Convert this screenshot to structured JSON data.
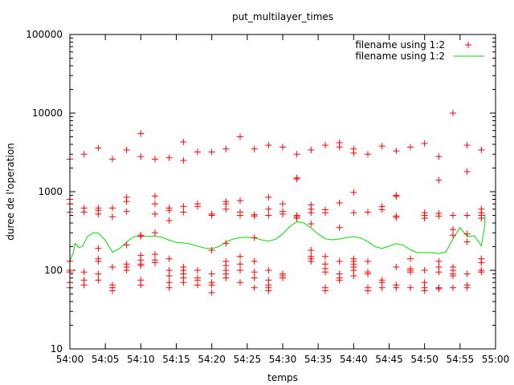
{
  "chart_data": {
    "type": "scatter",
    "title": "put_multilayer_times",
    "xlabel": "temps",
    "ylabel": "duree de l'operation",
    "y_scale": "log",
    "ylim": [
      10,
      100000
    ],
    "xlim": [
      "54:00",
      "55:00"
    ],
    "yticks": [
      {
        "value": 10,
        "label": "10"
      },
      {
        "value": 100,
        "label": "100"
      },
      {
        "value": 1000,
        "label": "1000"
      },
      {
        "value": 10000,
        "label": "10000"
      },
      {
        "value": 100000,
        "label": "100000"
      }
    ],
    "xticks": [
      "54:00",
      "54:05",
      "54:10",
      "54:15",
      "54:20",
      "54:25",
      "54:30",
      "54:35",
      "54:40",
      "54:45",
      "54:50",
      "54:55",
      "55:00"
    ],
    "grid": false,
    "legend_position": "top-right",
    "series": [
      {
        "name": "filename using 1:2",
        "style": "points",
        "marker": "+",
        "color": "#ff0000",
        "groups": [
          {
            "t": "54:00",
            "values": [
              60,
              70,
              95,
              100,
              130,
              550,
              700,
              800,
              2600
            ]
          },
          {
            "t": "54:02",
            "values": [
              65,
              75,
              95,
              550,
              620,
              3000
            ]
          },
          {
            "t": "54:04",
            "values": [
              75,
              90,
              130,
              140,
              190,
              520,
              580,
              620,
              3600
            ]
          },
          {
            "t": "54:06",
            "values": [
              55,
              60,
              65,
              110,
              480,
              620,
              2600
            ]
          },
          {
            "t": "54:08",
            "values": [
              100,
              110,
              120,
              210,
              560,
              750,
              850,
              3400
            ]
          },
          {
            "t": "54:10",
            "values": [
              65,
              75,
              115,
              120,
              135,
              155,
              270,
              280,
              2800,
              5500
            ]
          },
          {
            "t": "54:12",
            "values": [
              125,
              135,
              160,
              300,
              520,
              700,
              880,
              2600
            ]
          },
          {
            "t": "54:14",
            "values": [
              60,
              70,
              85,
              100,
              140,
              430,
              580,
              620,
              2700
            ]
          },
          {
            "t": "54:16",
            "values": [
              70,
              80,
              90,
              100,
              110,
              550,
              650,
              2500,
              4300
            ]
          },
          {
            "t": "54:18",
            "values": [
              65,
              75,
              80,
              100,
              650,
              700,
              3200
            ]
          },
          {
            "t": "54:20",
            "values": [
              52,
              65,
              70,
              90,
              180,
              500,
              520,
              3200
            ]
          },
          {
            "t": "54:22",
            "values": [
              80,
              90,
              100,
              115,
              130,
              220,
              600,
              700,
              750,
              3500
            ]
          },
          {
            "t": "54:24",
            "values": [
              70,
              100,
              120,
              150,
              500,
              550,
              770,
              5000
            ]
          },
          {
            "t": "54:26",
            "values": [
              60,
              80,
              95,
              130,
              260,
              490,
              510,
              3500
            ]
          },
          {
            "t": "54:28",
            "values": [
              55,
              60,
              65,
              75,
              100,
              500,
              600,
              850,
              3900
            ]
          },
          {
            "t": "54:30",
            "values": [
              80,
              85,
              90,
              520,
              560,
              700,
              3700
            ]
          },
          {
            "t": "54:32",
            "values": [
              460,
              480,
              500,
              1450,
              1500,
              3000
            ]
          },
          {
            "t": "54:34",
            "values": [
              130,
              140,
              150,
              180,
              390,
              540,
              600,
              680,
              3400
            ]
          },
          {
            "t": "54:36",
            "values": [
              55,
              60,
              95,
              105,
              120,
              150,
              540,
              590,
              3900
            ]
          },
          {
            "t": "54:38",
            "values": [
              75,
              80,
              90,
              130,
              350,
              720,
              3700,
              4200
            ]
          },
          {
            "t": "54:40",
            "values": [
              85,
              100,
              110,
              120,
              130,
              140,
              540,
              980,
              3100,
              3500
            ]
          },
          {
            "t": "54:42",
            "values": [
              55,
              60,
              90,
              95,
              130,
              550,
              3000
            ]
          },
          {
            "t": "54:44",
            "values": [
              60,
              70,
              75,
              590,
              650,
              3800
            ]
          },
          {
            "t": "54:46",
            "values": [
              60,
              65,
              110,
              470,
              490,
              870,
              900,
              3300
            ]
          },
          {
            "t": "54:48",
            "values": [
              60,
              95,
              100,
              105,
              140,
              3700
            ]
          },
          {
            "t": "54:50",
            "values": [
              55,
              60,
              70,
              100,
              460,
              500,
              540,
              4100
            ]
          },
          {
            "t": "54:52",
            "values": [
              58,
              60,
              95,
              110,
              130,
              490,
              530,
              1400,
              2800
            ]
          },
          {
            "t": "54:54",
            "values": [
              60,
              85,
              90,
              100,
              110,
              280,
              330,
              500,
              10000
            ]
          },
          {
            "t": "54:56",
            "values": [
              60,
              65,
              90,
              230,
              290,
              500,
              1800,
              3900
            ]
          },
          {
            "t": "54:58",
            "values": [
              95,
              100,
              125,
              140,
              460,
              500,
              540,
              600,
              3400
            ]
          }
        ]
      },
      {
        "name": "filename using 1:2",
        "style": "line",
        "color": "#00dd00",
        "points": [
          {
            "t": "54:00",
            "value": 130
          },
          {
            "t": "54:00.5",
            "value": 170
          },
          {
            "t": "54:00.75",
            "value": 220
          },
          {
            "t": "54:01.25",
            "value": 195
          },
          {
            "t": "54:01.75",
            "value": 200
          },
          {
            "t": "54:02.5",
            "value": 270
          },
          {
            "t": "54:03.25",
            "value": 298
          },
          {
            "t": "54:04",
            "value": 298
          },
          {
            "t": "54:05",
            "value": 240
          },
          {
            "t": "54:06",
            "value": 170
          },
          {
            "t": "54:07",
            "value": 190
          },
          {
            "t": "54:08",
            "value": 230
          },
          {
            "t": "54:09",
            "value": 268
          },
          {
            "t": "54:10",
            "value": 272
          },
          {
            "t": "54:11",
            "value": 270
          },
          {
            "t": "54:12",
            "value": 273
          },
          {
            "t": "54:13",
            "value": 262
          },
          {
            "t": "54:14",
            "value": 242
          },
          {
            "t": "54:15",
            "value": 226
          },
          {
            "t": "54:16",
            "value": 223
          },
          {
            "t": "54:17",
            "value": 215
          },
          {
            "t": "54:18",
            "value": 203
          },
          {
            "t": "54:19",
            "value": 192
          },
          {
            "t": "54:20",
            "value": 188
          },
          {
            "t": "54:21",
            "value": 200
          },
          {
            "t": "54:22",
            "value": 228
          },
          {
            "t": "54:23",
            "value": 250
          },
          {
            "t": "54:24",
            "value": 260
          },
          {
            "t": "54:25",
            "value": 263
          },
          {
            "t": "54:26",
            "value": 258
          },
          {
            "t": "54:27",
            "value": 244
          },
          {
            "t": "54:28",
            "value": 235
          },
          {
            "t": "54:29",
            "value": 248
          },
          {
            "t": "54:30",
            "value": 290
          },
          {
            "t": "54:31",
            "value": 360
          },
          {
            "t": "54:32",
            "value": 415
          },
          {
            "t": "54:33",
            "value": 400
          },
          {
            "t": "54:34",
            "value": 345
          },
          {
            "t": "54:35",
            "value": 290
          },
          {
            "t": "54:36",
            "value": 252
          },
          {
            "t": "54:37",
            "value": 244
          },
          {
            "t": "54:38",
            "value": 250
          },
          {
            "t": "54:39",
            "value": 260
          },
          {
            "t": "54:40",
            "value": 268
          },
          {
            "t": "54:41",
            "value": 258
          },
          {
            "t": "54:42",
            "value": 232
          },
          {
            "t": "54:43",
            "value": 200
          },
          {
            "t": "54:44",
            "value": 190
          },
          {
            "t": "54:45",
            "value": 203
          },
          {
            "t": "54:46",
            "value": 218
          },
          {
            "t": "54:47",
            "value": 208
          },
          {
            "t": "54:48",
            "value": 182
          },
          {
            "t": "54:49",
            "value": 168
          },
          {
            "t": "54:50",
            "value": 168
          },
          {
            "t": "54:51",
            "value": 168
          },
          {
            "t": "54:52",
            "value": 163
          },
          {
            "t": "54:53",
            "value": 172
          },
          {
            "t": "54:54",
            "value": 250
          },
          {
            "t": "54:55",
            "value": 350
          },
          {
            "t": "54:56",
            "value": 270
          },
          {
            "t": "54:57",
            "value": 275
          },
          {
            "t": "54:58",
            "value": 205
          },
          {
            "t": "54:58.5",
            "value": 380
          },
          {
            "t": "54:58.5",
            "value": 520
          }
        ]
      }
    ]
  }
}
